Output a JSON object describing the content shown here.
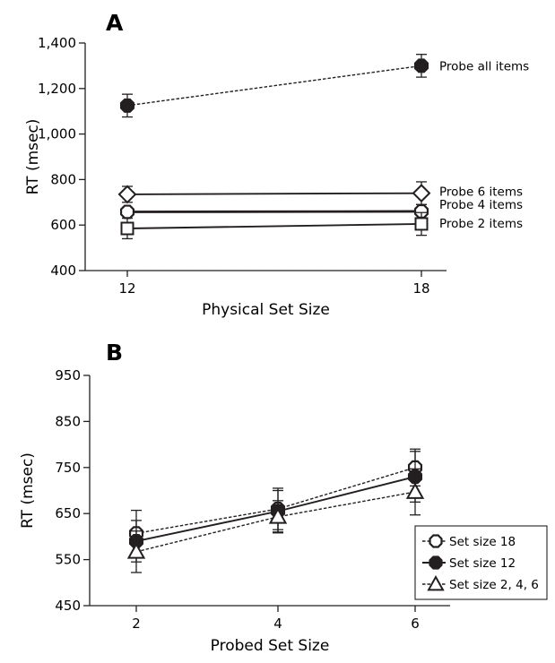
{
  "chart_data": [
    {
      "panel": "A",
      "type": "line",
      "xlabel": "Physical Set Size",
      "ylabel": "RT (msec)",
      "x": [
        12,
        18
      ],
      "x_tick_labels": [
        "12",
        "18"
      ],
      "ylim": [
        400,
        1400
      ],
      "y_tick_labels": [
        "400",
        "600",
        "800",
        "1,000",
        "1,200",
        "1,400"
      ],
      "grid": false,
      "legend": "direct labels at right end of lines",
      "series": [
        {
          "name": "Probe all items",
          "values": [
            1125,
            1300
          ],
          "errors": [
            50,
            50
          ],
          "marker": "filled-octagon",
          "line": "dashed"
        },
        {
          "name": "Probe 6 items",
          "values": [
            735,
            740
          ],
          "errors": [
            35,
            50
          ],
          "marker": "open-diamond",
          "line": "solid"
        },
        {
          "name": "Probe 4 items",
          "values": [
            658,
            660
          ],
          "errors": [
            20,
            30
          ],
          "marker": "open-octagon",
          "line": "solid-thick"
        },
        {
          "name": "Probe 2 items",
          "values": [
            585,
            605
          ],
          "errors": [
            45,
            50
          ],
          "marker": "open-square",
          "line": "solid"
        }
      ]
    },
    {
      "panel": "B",
      "type": "line",
      "xlabel": "Probed Set Size",
      "ylabel": "RT (msec)",
      "x": [
        2,
        4,
        6
      ],
      "x_tick_labels": [
        "2",
        "4",
        "6"
      ],
      "ylim": [
        450,
        950
      ],
      "y_tick_labels": [
        "450",
        "550",
        "650",
        "750",
        "850",
        "950"
      ],
      "grid": false,
      "legend": "bottom-right",
      "series": [
        {
          "name": "Set size 18",
          "values": [
            607,
            660,
            750
          ],
          "errors": [
            50,
            45,
            40
          ],
          "marker": "open-octagon",
          "line": "dashed"
        },
        {
          "name": "Set size 12",
          "values": [
            590,
            655,
            730
          ],
          "errors": [
            45,
            45,
            55
          ],
          "marker": "filled-octagon",
          "line": "solid"
        },
        {
          "name": "Set size 2, 4, 6",
          "values": [
            567,
            643,
            697
          ],
          "errors": [
            45,
            35,
            50
          ],
          "marker": "open-triangle",
          "line": "dashed"
        }
      ]
    }
  ]
}
